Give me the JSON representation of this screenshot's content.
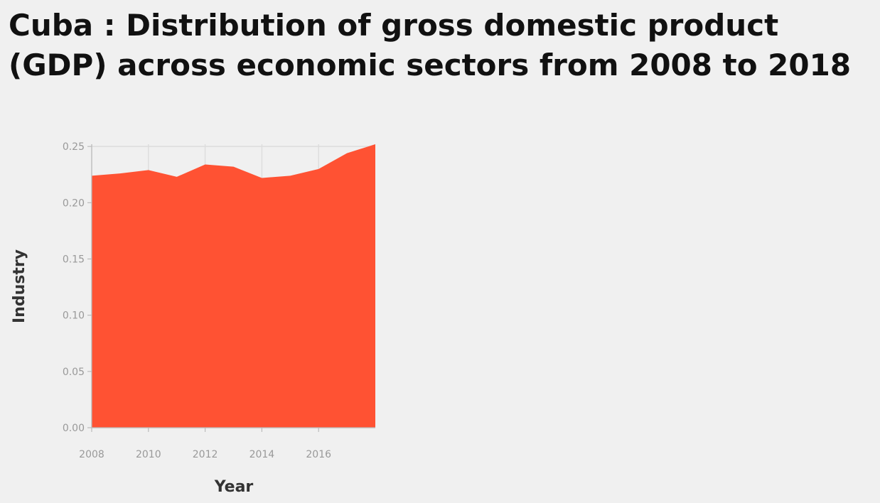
{
  "chart_data": {
    "type": "area",
    "title": "Cuba : Distribution of gross domestic product (GDP) across economic sectors from 2008 to 2018",
    "xlabel": "Year",
    "ylabel": "Industry",
    "x": [
      2008,
      2009,
      2010,
      2011,
      2012,
      2013,
      2014,
      2015,
      2016,
      2017,
      2018
    ],
    "values": [
      0.224,
      0.226,
      0.229,
      0.223,
      0.234,
      0.232,
      0.222,
      0.224,
      0.23,
      0.244,
      0.252
    ],
    "xlim": [
      2008,
      2018
    ],
    "ylim": [
      0,
      0.252
    ],
    "xticks": [
      {
        "value": 2008,
        "label": "2008"
      },
      {
        "value": 2010,
        "label": "2010"
      },
      {
        "value": 2012,
        "label": "2012"
      },
      {
        "value": 2014,
        "label": "2014"
      },
      {
        "value": 2016,
        "label": "2016"
      }
    ],
    "yticks": [
      {
        "value": 0,
        "label": "0.00"
      },
      {
        "value": 0.05,
        "label": "0.05"
      },
      {
        "value": 0.1,
        "label": "0.10"
      },
      {
        "value": 0.15,
        "label": "0.15"
      },
      {
        "value": 0.2,
        "label": "0.20"
      },
      {
        "value": 0.25,
        "label": "0.25"
      }
    ],
    "grid": true,
    "fill_color": "#ff5233"
  }
}
